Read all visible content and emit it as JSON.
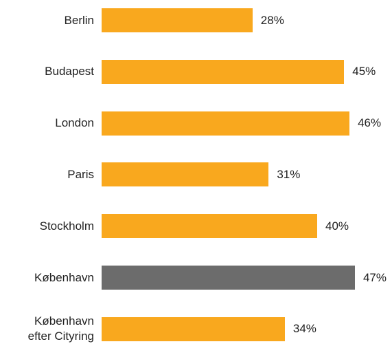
{
  "chart_data": {
    "type": "bar",
    "orientation": "horizontal",
    "categories": [
      "Berlin",
      "Budapest",
      "London",
      "Paris",
      "Stockholm",
      "København",
      "København\nefter Cityring"
    ],
    "values": [
      28,
      45,
      46,
      31,
      40,
      47,
      34
    ],
    "value_labels": [
      "28%",
      "45%",
      "46%",
      "31%",
      "40%",
      "47%",
      "34%"
    ],
    "colors": [
      "#f9a81e",
      "#f9a81e",
      "#f9a81e",
      "#f9a81e",
      "#f9a81e",
      "#6c6c6c",
      "#f9a81e"
    ]
  }
}
